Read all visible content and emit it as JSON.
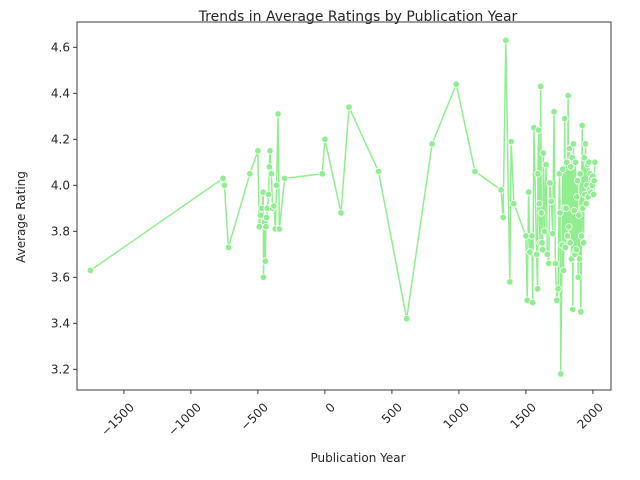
{
  "chart_data": {
    "type": "line",
    "title": "Trends in Average Ratings by Publication Year",
    "xlabel": "Publication Year",
    "ylabel": "Average Rating",
    "xlim": [
      -1850,
      2135
    ],
    "ylim": [
      3.11,
      4.71
    ],
    "x_ticks": [
      -1500,
      -1000,
      -500,
      0,
      500,
      1000,
      1500,
      2000
    ],
    "x_tick_labels": [
      "−1500",
      "−1000",
      "−500",
      "0",
      "500",
      "1000",
      "1500",
      "2000"
    ],
    "y_ticks": [
      3.2,
      3.4,
      3.6,
      3.8,
      4.0,
      4.2,
      4.4,
      4.6
    ],
    "y_tick_labels": [
      "3.2",
      "3.4",
      "3.6",
      "3.8",
      "4.0",
      "4.2",
      "4.4",
      "4.6"
    ],
    "grid": false,
    "legend": "none",
    "line_color": "#90ee90",
    "marker": "circle",
    "series": [
      {
        "x": [
          -1750,
          -760,
          -750,
          -720,
          -560,
          -500,
          -490,
          -480,
          -470,
          -460,
          -458,
          -450,
          -445,
          -440,
          -435,
          -430,
          -420,
          -415,
          -410,
          -400,
          -390,
          -380,
          -370,
          -360,
          -350,
          -340,
          -300,
          -20,
          0,
          120,
          180,
          400,
          610,
          800,
          980,
          1120,
          1315,
          1330,
          1350,
          1380,
          1390,
          1410,
          1500,
          1510,
          1520,
          1530,
          1545,
          1550,
          1560,
          1580,
          1587,
          1590,
          1595,
          1600,
          1605,
          1610,
          1615,
          1620,
          1625,
          1630,
          1640,
          1650,
          1660,
          1670,
          1680,
          1690,
          1700,
          1710,
          1720,
          1730,
          1740,
          1750,
          1755,
          1760,
          1770,
          1775,
          1780,
          1785,
          1790,
          1795,
          1800,
          1805,
          1810,
          1815,
          1820,
          1825,
          1830,
          1835,
          1840,
          1845,
          1850,
          1855,
          1860,
          1865,
          1870,
          1875,
          1880,
          1885,
          1890,
          1895,
          1900,
          1905,
          1910,
          1915,
          1920,
          1925,
          1930,
          1935,
          1940,
          1945,
          1950,
          1955,
          1960,
          1965,
          1970,
          1975,
          1980,
          1985,
          1990,
          1995,
          2000,
          2005,
          2010,
          2015
        ],
        "y": [
          3.63,
          4.03,
          4.0,
          3.73,
          4.05,
          4.15,
          3.82,
          3.87,
          3.9,
          3.97,
          3.6,
          3.84,
          3.67,
          3.82,
          3.86,
          3.9,
          3.96,
          4.08,
          4.15,
          4.05,
          3.9,
          3.91,
          3.81,
          4.0,
          4.31,
          3.81,
          4.03,
          4.05,
          4.2,
          3.88,
          4.34,
          4.06,
          3.42,
          4.18,
          4.44,
          4.06,
          3.98,
          3.86,
          4.63,
          3.58,
          4.19,
          3.92,
          3.78,
          3.5,
          3.97,
          3.71,
          3.78,
          3.49,
          4.25,
          3.7,
          3.55,
          4.05,
          4.24,
          3.92,
          3.75,
          4.43,
          3.88,
          3.75,
          3.72,
          4.14,
          3.8,
          4.09,
          3.7,
          3.66,
          4.01,
          3.93,
          3.79,
          4.32,
          3.66,
          3.5,
          3.55,
          4.05,
          3.88,
          3.18,
          3.74,
          4.07,
          3.63,
          3.9,
          4.29,
          3.73,
          3.9,
          4.1,
          3.78,
          4.39,
          3.82,
          4.16,
          3.75,
          4.08,
          3.68,
          4.12,
          3.46,
          4.18,
          3.89,
          3.7,
          4.1,
          3.72,
          3.95,
          4.02,
          3.6,
          3.87,
          3.68,
          4.05,
          3.45,
          3.78,
          4.26,
          3.9,
          3.75,
          4.12,
          3.96,
          4.18,
          3.92,
          4.0,
          4.09,
          3.95,
          4.1,
          3.98,
          4.05,
          3.97,
          4.03,
          4.0,
          4.04,
          3.96,
          4.02,
          4.1
        ]
      }
    ]
  }
}
